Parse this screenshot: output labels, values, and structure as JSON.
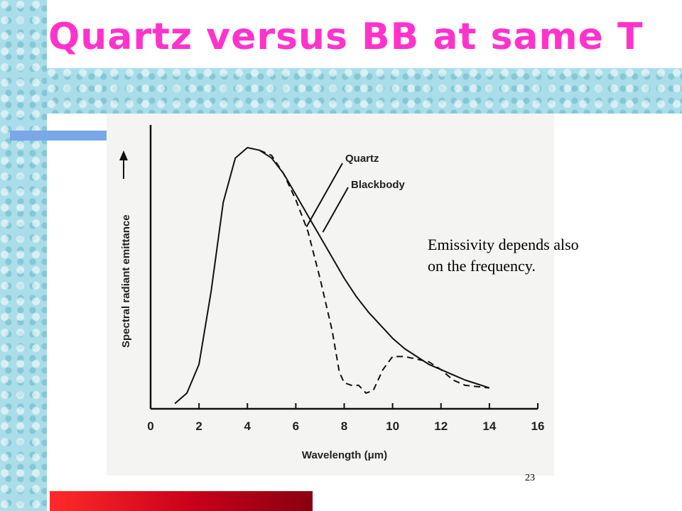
{
  "slide": {
    "title": "Quartz versus BB at same T",
    "annotation_line1": "Emissivity depends also",
    "annotation_line2": "on the frequency.",
    "page_number": "23"
  },
  "colors": {
    "title": "#ff33cc",
    "background_pattern": "#a9dee9",
    "accent_bar": "#7aa7e6",
    "footer_bar": "#d0001a"
  },
  "chart_data": {
    "type": "line",
    "title": "",
    "xlabel": "Wavelength (μm)",
    "ylabel": "Spectral radiant emittance",
    "xlim": [
      0,
      16
    ],
    "x_ticks": [
      0,
      2,
      4,
      6,
      8,
      10,
      12,
      14,
      16
    ],
    "y_ticks": [],
    "grid": false,
    "legend": "annotations",
    "series": [
      {
        "name": "Blackbody",
        "style": "solid",
        "x": [
          1.0,
          1.5,
          2.0,
          2.5,
          3.0,
          3.5,
          4.0,
          4.5,
          5.0,
          5.5,
          6.0,
          6.5,
          7.0,
          7.5,
          8.0,
          8.5,
          9.0,
          9.5,
          10.0,
          10.5,
          11.0,
          11.5,
          12.0,
          12.5,
          13.0,
          13.5,
          14.0
        ],
        "y": [
          0.02,
          0.06,
          0.17,
          0.45,
          0.79,
          0.96,
          1.0,
          0.99,
          0.96,
          0.9,
          0.82,
          0.74,
          0.66,
          0.58,
          0.5,
          0.43,
          0.37,
          0.32,
          0.27,
          0.23,
          0.2,
          0.17,
          0.15,
          0.13,
          0.11,
          0.095,
          0.08
        ]
      },
      {
        "name": "Quartz",
        "style": "dashed",
        "x": [
          4.5,
          5.0,
          5.5,
          6.0,
          6.5,
          7.0,
          7.5,
          7.8,
          8.0,
          8.3,
          8.6,
          8.9,
          9.2,
          9.6,
          10.0,
          10.5,
          11.0,
          11.5,
          12.0,
          12.5,
          13.0,
          13.5,
          14.0
        ],
        "y": [
          0.99,
          0.97,
          0.9,
          0.8,
          0.68,
          0.5,
          0.3,
          0.14,
          0.1,
          0.09,
          0.09,
          0.06,
          0.07,
          0.15,
          0.2,
          0.2,
          0.19,
          0.18,
          0.15,
          0.11,
          0.09,
          0.085,
          0.08
        ]
      }
    ],
    "annotations": [
      {
        "text": "Quartz",
        "points_to": "Quartz"
      },
      {
        "text": "Blackbody",
        "points_to": "Blackbody"
      }
    ]
  }
}
